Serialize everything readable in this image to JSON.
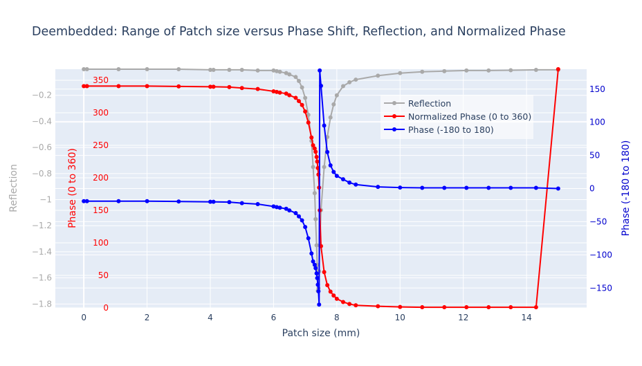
{
  "chart_data": {
    "type": "line",
    "title": "Deembedded: Range of Patch size versus Phase Shift, Reflection, and Normalized Phase",
    "xlabel": "Patch size (mm)",
    "xlim": [
      -0.9,
      15.9
    ],
    "xticks": [
      0,
      2,
      4,
      6,
      8,
      10,
      12,
      14
    ],
    "grid": true,
    "legend_placement": "top-right",
    "axes": {
      "reflection": {
        "label": "Reflection",
        "color": "#a9a9a9",
        "range": [
          -1.83,
          -0.0
        ],
        "ticks": [
          -0.2,
          -0.4,
          -0.6,
          -0.8,
          -1.0,
          -1.2,
          -1.4,
          -1.6,
          -1.8
        ],
        "tick_labels": [
          "−0.2",
          "−0.4",
          "−0.6",
          "−0.8",
          "−1",
          "−1.2",
          "−1.4",
          "−1.6",
          "−1.8"
        ]
      },
      "phase360": {
        "label": "Phase (0 to 360)",
        "color": "#ff0000",
        "range": [
          0,
          367
        ],
        "ticks": [
          0,
          50,
          100,
          150,
          200,
          250,
          300,
          350
        ],
        "tick_labels": [
          "0",
          "50",
          "100",
          "150",
          "200",
          "250",
          "300",
          "350"
        ]
      },
      "phase180": {
        "label": "Phase (-180 to 180)",
        "color": "#0000cd",
        "range": [
          -180,
          180
        ],
        "ticks": [
          -150,
          -100,
          -50,
          0,
          50,
          100,
          150
        ],
        "tick_labels": [
          "−150",
          "−100",
          "−50",
          "0",
          "50",
          "100",
          "150"
        ]
      }
    },
    "series": [
      {
        "name": "Reflection",
        "axis": "reflection",
        "color": "#a9a9a9",
        "x": [
          0,
          0.1,
          1.1,
          2.0,
          3.0,
          4.0,
          4.1,
          4.6,
          5.0,
          5.5,
          6.0,
          6.1,
          6.2,
          6.4,
          6.5,
          6.7,
          6.8,
          6.9,
          7.0,
          7.1,
          7.2,
          7.25,
          7.3,
          7.33,
          7.36,
          7.38,
          7.4,
          7.42,
          7.44,
          7.46,
          7.5,
          7.6,
          7.7,
          7.8,
          7.9,
          8.0,
          8.2,
          8.4,
          8.6,
          9.3,
          10.0,
          10.7,
          11.4,
          12.1,
          12.8,
          13.5,
          14.3,
          15.0
        ],
        "y": [
          0.0,
          0.0,
          0.0,
          0.0,
          0.0,
          -0.005,
          -0.005,
          -0.005,
          -0.005,
          -0.01,
          -0.01,
          -0.015,
          -0.02,
          -0.03,
          -0.04,
          -0.06,
          -0.09,
          -0.14,
          -0.22,
          -0.35,
          -0.55,
          -0.75,
          -0.95,
          -1.15,
          -1.35,
          -1.5,
          -1.7,
          -1.68,
          -1.55,
          -1.35,
          -1.08,
          -0.75,
          -0.52,
          -0.37,
          -0.27,
          -0.2,
          -0.13,
          -0.1,
          -0.08,
          -0.05,
          -0.03,
          -0.02,
          -0.015,
          -0.01,
          -0.01,
          -0.008,
          -0.005,
          -0.005
        ]
      },
      {
        "name": "Normalized Phase (0 to 360)",
        "axis": "phase360",
        "color": "#ff0000",
        "x": [
          0,
          0.1,
          1.1,
          2.0,
          3.0,
          4.0,
          4.1,
          4.6,
          5.0,
          5.5,
          6.0,
          6.1,
          6.2,
          6.4,
          6.5,
          6.7,
          6.8,
          6.9,
          7.0,
          7.1,
          7.2,
          7.25,
          7.3,
          7.33,
          7.36,
          7.38,
          7.4,
          7.42,
          7.44,
          7.46,
          7.5,
          7.6,
          7.7,
          7.8,
          7.9,
          8.0,
          8.2,
          8.4,
          8.6,
          9.3,
          10.0,
          10.7,
          11.4,
          12.1,
          12.8,
          13.5,
          14.3,
          15.0
        ],
        "y": [
          341,
          341,
          341,
          341,
          340.5,
          340,
          340,
          339.5,
          338,
          336.5,
          333,
          332,
          331,
          329.5,
          327,
          323,
          318,
          312,
          302,
          285,
          262,
          250,
          245,
          240,
          232,
          225,
          215,
          205,
          185,
          150,
          95,
          55,
          35,
          25,
          19,
          14,
          9,
          6,
          4,
          2.5,
          1.5,
          1,
          1,
          1,
          1,
          1,
          1,
          367
        ]
      },
      {
        "name": "Phase (-180 to 180)",
        "axis": "phase180",
        "color": "#0000ff",
        "x": [
          0,
          0.1,
          1.1,
          2.0,
          3.0,
          4.0,
          4.1,
          4.6,
          5.0,
          5.5,
          6.0,
          6.1,
          6.2,
          6.4,
          6.5,
          6.7,
          6.8,
          6.9,
          7.0,
          7.1,
          7.2,
          7.25,
          7.3,
          7.33,
          7.36,
          7.38,
          7.4,
          7.42,
          7.44,
          7.46,
          7.5,
          7.6,
          7.7,
          7.8,
          7.9,
          8.0,
          8.2,
          8.4,
          8.6,
          9.3,
          10.0,
          10.7,
          11.4,
          12.1,
          12.8,
          13.5,
          14.3,
          15.0
        ],
        "y": [
          -19,
          -19,
          -19,
          -19,
          -19.5,
          -20,
          -20,
          -20.5,
          -22,
          -23.5,
          -27,
          -28,
          -29,
          -30.5,
          -33,
          -37,
          -42,
          -48,
          -58,
          -75,
          -98,
          -110,
          -115,
          -120,
          -128,
          -135,
          -145,
          -155,
          -175,
          178,
          155,
          95,
          55,
          35,
          25,
          19,
          14,
          9,
          6,
          2.5,
          1.5,
          1,
          1,
          1,
          1,
          1,
          1,
          0
        ]
      }
    ]
  }
}
